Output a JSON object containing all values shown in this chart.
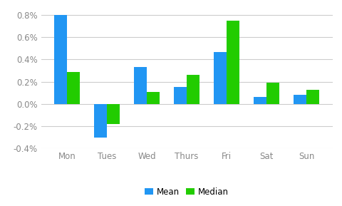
{
  "categories": [
    "Mon",
    "Tues",
    "Wed",
    "Thurs",
    "Fri",
    "Sat",
    "Sun"
  ],
  "mean": [
    0.008,
    -0.003,
    0.0033,
    0.0015,
    0.0047,
    0.0006,
    0.0008
  ],
  "median": [
    0.0029,
    -0.0018,
    0.0011,
    0.0026,
    0.0075,
    0.0019,
    0.0013
  ],
  "mean_color": "#2196F3",
  "median_color": "#22CC00",
  "background_color": "#FFFFFF",
  "grid_color": "#CCCCCC",
  "ylim": [
    -0.004,
    0.0088
  ],
  "yticks": [
    -0.004,
    -0.002,
    0.0,
    0.002,
    0.004,
    0.006,
    0.008
  ],
  "bar_width": 0.32,
  "legend_labels": [
    "Mean",
    "Median"
  ],
  "tick_fontsize": 8.5,
  "legend_fontsize": 8.5
}
